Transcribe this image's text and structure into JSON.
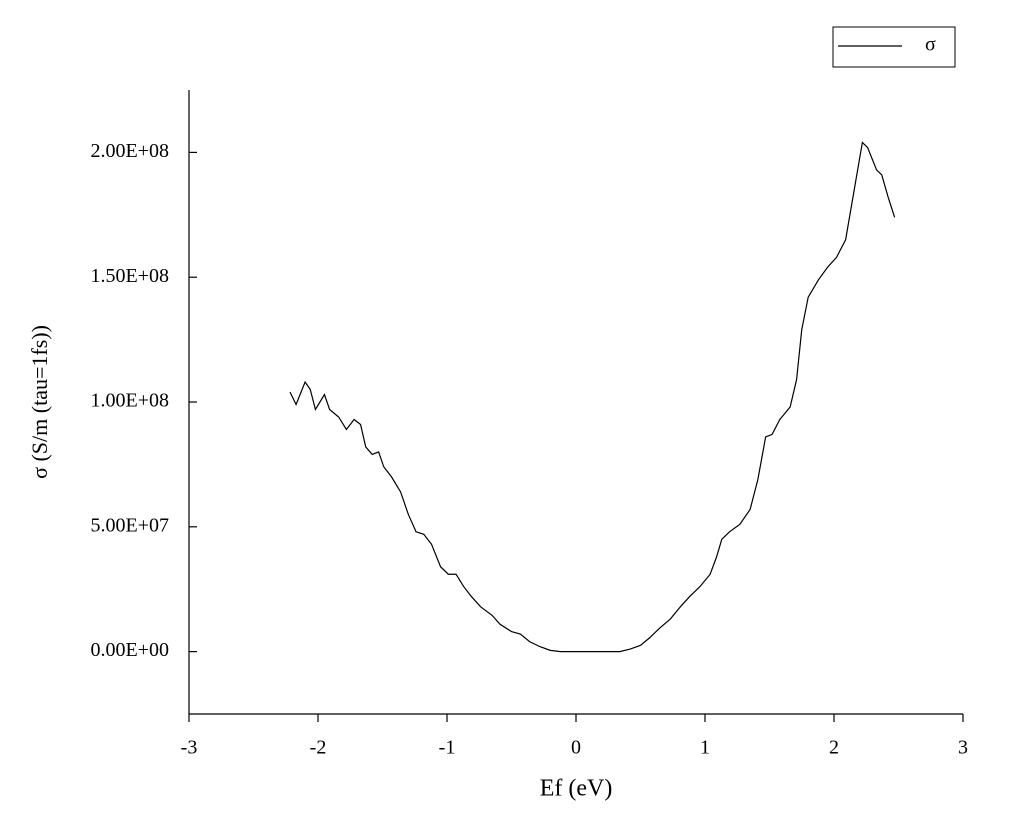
{
  "chart_data": {
    "type": "line",
    "x_label": "Ef (eV)",
    "y_label": "σ (S/m (tau=1fs))",
    "legend": "top-right",
    "xlim": [
      -3,
      3
    ],
    "xticks": [
      -3,
      -2,
      -1,
      0,
      1,
      2,
      3
    ],
    "ylim": [
      -25000000,
      225000000
    ],
    "yticks": [
      {
        "value": 0,
        "label": "0.00E+00"
      },
      {
        "value": 50000000,
        "label": "5.00E+07"
      },
      {
        "value": 100000000,
        "label": "1.00E+08"
      },
      {
        "value": 150000000,
        "label": "1.50E+08"
      },
      {
        "value": 200000000,
        "label": "2.00E+08"
      }
    ],
    "x": [
      -2.217,
      -2.17,
      -2.1,
      -2.06,
      -2.02,
      -1.95,
      -1.91,
      -1.84,
      -1.78,
      -1.72,
      -1.67,
      -1.63,
      -1.58,
      -1.53,
      -1.49,
      -1.43,
      -1.36,
      -1.3,
      -1.24,
      -1.18,
      -1.12,
      -1.05,
      -0.99,
      -0.93,
      -0.87,
      -0.81,
      -0.74,
      -0.65,
      -0.59,
      -0.5,
      -0.43,
      -0.36,
      -0.28,
      -0.2,
      -0.12,
      0.34,
      0.42,
      0.5,
      0.57,
      0.65,
      0.73,
      0.81,
      0.88,
      0.96,
      1.04,
      1.09,
      1.13,
      1.19,
      1.27,
      1.35,
      1.41,
      1.47,
      1.52,
      1.58,
      1.66,
      1.71,
      1.75,
      1.8,
      1.88,
      1.95,
      2.02,
      2.09,
      2.16,
      2.22,
      2.26,
      2.33,
      2.37,
      2.42,
      2.47
    ],
    "series": [
      {
        "name": "σ",
        "color": "#000000",
        "values": [
          104000000,
          99000000,
          108000000,
          105000000,
          97000000,
          103000000,
          97000000,
          94000000,
          89000000,
          93000000,
          91000000,
          82000000,
          79000000,
          80000000,
          74000000,
          70000000,
          64000000,
          55000000,
          48000000,
          47000000,
          43000000,
          34000000,
          31000000,
          31000000,
          26000000,
          22000000,
          18000000,
          14500000,
          11000000,
          8000000,
          7000000,
          4000000,
          2000000,
          500000,
          0,
          0,
          1000000,
          2500000,
          5500000,
          9500000,
          13000000,
          18000000,
          22000000,
          26000000,
          31000000,
          38000000,
          45000000,
          48000000,
          51000000,
          57000000,
          69000000,
          86000000,
          87000000,
          93000000,
          98000000,
          109000000,
          129000000,
          142000000,
          149000000,
          154000000,
          158000000,
          165000000,
          186000000,
          204000000,
          202000000,
          193000000,
          191000000,
          182000000,
          174000000
        ]
      }
    ]
  }
}
